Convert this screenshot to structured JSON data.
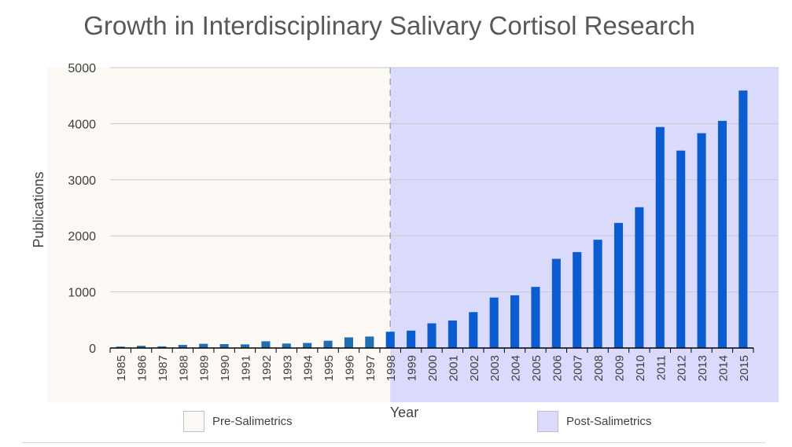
{
  "title": "Growth in Interdisciplinary Salivary Cortisol Research",
  "chart_data": {
    "type": "bar",
    "title": "Growth in Interdisciplinary Salivary Cortisol Research",
    "xlabel": "Year",
    "ylabel": "Publications",
    "ylim": [
      0,
      5000
    ],
    "yticks": [
      0,
      1000,
      2000,
      3000,
      4000,
      5000
    ],
    "grid": true,
    "categories": [
      "1985",
      "1986",
      "1987",
      "1988",
      "1989",
      "1990",
      "1991",
      "1992",
      "1993",
      "1994",
      "1995",
      "1996",
      "1997",
      "1998",
      "1999",
      "2000",
      "2001",
      "2002",
      "2003",
      "2004",
      "2005",
      "2006",
      "2007",
      "2008",
      "2009",
      "2010",
      "2011",
      "2012",
      "2013",
      "2014",
      "2015"
    ],
    "values": [
      25,
      40,
      30,
      55,
      75,
      70,
      65,
      120,
      80,
      90,
      130,
      190,
      205,
      290,
      310,
      440,
      490,
      640,
      900,
      940,
      1090,
      1590,
      1710,
      1930,
      2230,
      2510,
      3940,
      3520,
      3830,
      4050,
      4590
    ],
    "regions": [
      {
        "name": "Pre-Salimetrics",
        "from": "1985",
        "to": "1998",
        "color": "#fcf8f4"
      },
      {
        "name": "Post-Salimetrics",
        "from": "1998",
        "to": "2015",
        "color": "#d9dafc"
      }
    ],
    "divider_year": "1998",
    "bar_color_pre": "#1f6fb2",
    "bar_color_post": "#0a5cd0",
    "legend_position": "bottom"
  },
  "legend": {
    "pre_label": "Pre-Salimetrics",
    "post_label": "Post-Salimetrics"
  }
}
